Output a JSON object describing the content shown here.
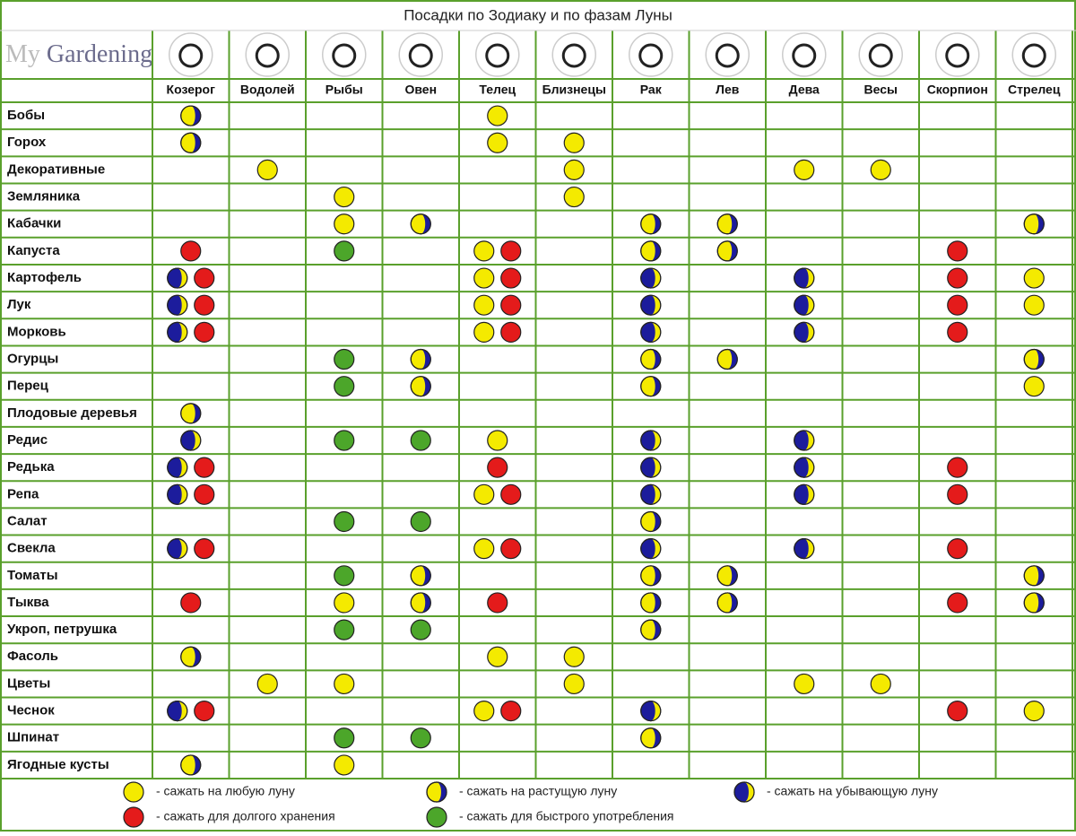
{
  "header": {
    "title": "Посадки по Зодиаку и по фазам Луны",
    "logo": {
      "prefix": "My",
      "name": "Gardening"
    }
  },
  "table": {
    "columns": [
      "Козерог",
      "Водолей",
      "Рыбы",
      "Овен",
      "Телец",
      "Близнецы",
      "Рак",
      "Лев",
      "Дева",
      "Весы",
      "Скорпион",
      "Стрелец"
    ],
    "rows": [
      {
        "name": "Бобы",
        "cells": [
          [
            1
          ],
          [],
          [],
          [],
          [
            0
          ],
          [],
          [],
          [],
          [],
          [],
          [],
          []
        ]
      },
      {
        "name": "Горох",
        "cells": [
          [
            1
          ],
          [],
          [],
          [],
          [
            0
          ],
          [
            0
          ],
          [],
          [],
          [],
          [],
          [],
          []
        ]
      },
      {
        "name": "Декоративные",
        "cells": [
          [],
          [
            0
          ],
          [],
          [],
          [],
          [
            0
          ],
          [],
          [],
          [
            0
          ],
          [
            0
          ],
          [],
          []
        ]
      },
      {
        "name": "Земляника",
        "cells": [
          [],
          [],
          [
            0
          ],
          [],
          [],
          [
            0
          ],
          [],
          [],
          [],
          [],
          [],
          []
        ]
      },
      {
        "name": "Кабачки",
        "cells": [
          [],
          [],
          [
            0
          ],
          [
            1
          ],
          [],
          [],
          [
            1
          ],
          [
            1
          ],
          [],
          [],
          [],
          [
            1
          ]
        ]
      },
      {
        "name": "Капуста",
        "cells": [
          [
            3
          ],
          [],
          [
            4
          ],
          [],
          [
            0,
            3
          ],
          [],
          [
            1
          ],
          [
            1
          ],
          [],
          [],
          [
            3
          ],
          []
        ]
      },
      {
        "name": "Картофель",
        "cells": [
          [
            2,
            3
          ],
          [],
          [],
          [],
          [
            0,
            3
          ],
          [],
          [
            2
          ],
          [],
          [
            2
          ],
          [],
          [
            3
          ],
          [
            0
          ]
        ]
      },
      {
        "name": "Лук",
        "cells": [
          [
            2,
            3
          ],
          [],
          [],
          [],
          [
            0,
            3
          ],
          [],
          [
            2
          ],
          [],
          [
            2
          ],
          [],
          [
            3
          ],
          [
            0
          ]
        ]
      },
      {
        "name": "Морковь",
        "cells": [
          [
            2,
            3
          ],
          [],
          [],
          [],
          [
            0,
            3
          ],
          [],
          [
            2
          ],
          [],
          [
            2
          ],
          [],
          [
            3
          ],
          []
        ]
      },
      {
        "name": "Огурцы",
        "cells": [
          [],
          [],
          [
            4
          ],
          [
            1
          ],
          [],
          [],
          [
            1
          ],
          [
            1
          ],
          [],
          [],
          [],
          [
            1
          ]
        ]
      },
      {
        "name": "Перец",
        "cells": [
          [],
          [],
          [
            4
          ],
          [
            1
          ],
          [],
          [],
          [
            1
          ],
          [],
          [],
          [],
          [],
          [
            0
          ]
        ]
      },
      {
        "name": "Плодовые деревья",
        "cells": [
          [
            1
          ],
          [],
          [],
          [],
          [],
          [],
          [],
          [],
          [],
          [],
          [],
          []
        ]
      },
      {
        "name": "Редис",
        "cells": [
          [
            2
          ],
          [],
          [
            4
          ],
          [
            4
          ],
          [
            0
          ],
          [],
          [
            2
          ],
          [],
          [
            2
          ],
          [],
          [],
          []
        ]
      },
      {
        "name": "Редька",
        "cells": [
          [
            2,
            3
          ],
          [],
          [],
          [],
          [
            3
          ],
          [],
          [
            2
          ],
          [],
          [
            2
          ],
          [],
          [
            3
          ],
          []
        ]
      },
      {
        "name": "Репа",
        "cells": [
          [
            2,
            3
          ],
          [],
          [],
          [],
          [
            0,
            3
          ],
          [],
          [
            2
          ],
          [],
          [
            2
          ],
          [],
          [
            3
          ],
          []
        ]
      },
      {
        "name": "Салат",
        "cells": [
          [],
          [],
          [
            4
          ],
          [
            4
          ],
          [],
          [],
          [
            1
          ],
          [],
          [],
          [],
          [],
          []
        ]
      },
      {
        "name": "Свекла",
        "cells": [
          [
            2,
            3
          ],
          [],
          [],
          [],
          [
            0,
            3
          ],
          [],
          [
            2
          ],
          [],
          [
            2
          ],
          [],
          [
            3
          ],
          []
        ]
      },
      {
        "name": "Томаты",
        "cells": [
          [],
          [],
          [
            4
          ],
          [
            1
          ],
          [],
          [],
          [
            1
          ],
          [
            1
          ],
          [],
          [],
          [],
          [
            1
          ]
        ]
      },
      {
        "name": "Тыква",
        "cells": [
          [
            3
          ],
          [],
          [
            0
          ],
          [
            1
          ],
          [
            3
          ],
          [],
          [
            1
          ],
          [
            1
          ],
          [],
          [],
          [
            3
          ],
          [
            1
          ]
        ]
      },
      {
        "name": "Укроп, петрушка",
        "cells": [
          [],
          [],
          [
            4
          ],
          [
            4
          ],
          [],
          [],
          [
            1
          ],
          [],
          [],
          [],
          [],
          []
        ]
      },
      {
        "name": "Фасоль",
        "cells": [
          [
            1
          ],
          [],
          [],
          [],
          [
            0
          ],
          [
            0
          ],
          [],
          [],
          [],
          [],
          [],
          []
        ]
      },
      {
        "name": "Цветы",
        "cells": [
          [],
          [
            0
          ],
          [
            0
          ],
          [],
          [],
          [
            0
          ],
          [],
          [],
          [
            0
          ],
          [
            0
          ],
          [],
          []
        ]
      },
      {
        "name": "Чеснок",
        "cells": [
          [
            2,
            3
          ],
          [],
          [],
          [],
          [
            0,
            3
          ],
          [],
          [
            2
          ],
          [],
          [],
          [],
          [
            3
          ],
          [
            0
          ]
        ]
      },
      {
        "name": "Шпинат",
        "cells": [
          [],
          [],
          [
            4
          ],
          [
            4
          ],
          [],
          [],
          [
            1
          ],
          [],
          [],
          [],
          [],
          []
        ]
      },
      {
        "name": "Ягодные кусты",
        "cells": [
          [
            1
          ],
          [],
          [
            0
          ],
          [],
          [],
          [],
          [],
          [],
          [],
          [],
          [],
          []
        ]
      }
    ]
  },
  "legend": [
    {
      "fill": "#f4ea00",
      "label": "- сажать на любую луну"
    },
    {
      "fill": "#f4ea00",
      "crescent": "#1c1c9c",
      "label": "- сажать на растущую луну"
    },
    {
      "fill": "#1c1c9c",
      "crescent": "#f4ea00",
      "label": "- сажать на убывающую луну"
    },
    {
      "fill": "#e41b1b",
      "label": "- сажать для долгого хранения"
    },
    {
      "fill": "#4ca62a",
      "label": "- сажать для быстрого употребления"
    }
  ]
}
